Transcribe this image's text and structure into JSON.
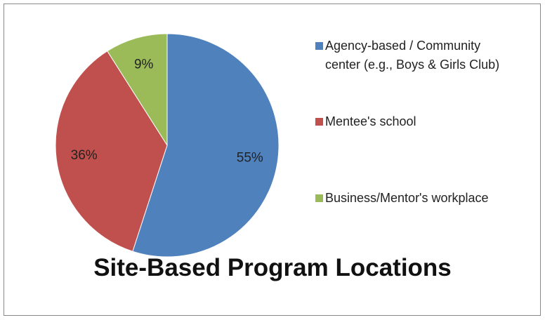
{
  "chart_data": {
    "type": "pie",
    "title": "Site-Based Program Locations",
    "categories": [
      "Agency-based / Community center (e.g., Boys & Girls Club)",
      "Mentee's school",
      "Business/Mentor's workplace"
    ],
    "values": [
      55,
      36,
      9
    ],
    "value_labels": [
      "55%",
      "36%",
      "9%"
    ],
    "colors": [
      "#4f81bd",
      "#c0504d",
      "#9bbb59"
    ],
    "legend": "right"
  }
}
